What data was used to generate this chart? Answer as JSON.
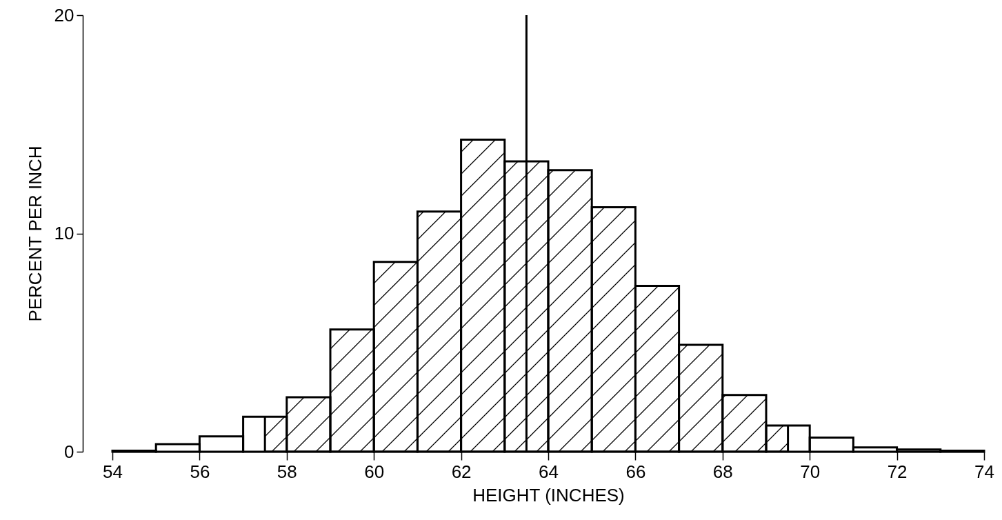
{
  "chart_data": {
    "type": "histogram",
    "xlabel": "HEIGHT (INCHES)",
    "ylabel": "PERCENT PER INCH",
    "bins": [
      54,
      55,
      56,
      57,
      58,
      59,
      60,
      61,
      62,
      63,
      64,
      65,
      66,
      67,
      68,
      69,
      70,
      71,
      72,
      73,
      74
    ],
    "values": [
      0.05,
      0.35,
      0.7,
      1.6,
      2.5,
      5.6,
      8.7,
      11,
      14.3,
      13.3,
      12.9,
      11.2,
      7.6,
      4.9,
      2.6,
      1.2,
      0.65,
      0.2,
      0.1,
      0.05
    ],
    "xlim": [
      54,
      74
    ],
    "ylim": [
      0,
      20
    ],
    "xticks": [
      54,
      56,
      58,
      60,
      62,
      64,
      66,
      68,
      70,
      72,
      74
    ],
    "yticks": [
      0,
      10,
      20
    ],
    "ref_lines": [
      {
        "axis": "x",
        "value": 63.5
      }
    ],
    "bands": [
      {
        "axis": "x",
        "from": 57.5,
        "to": 69.5
      }
    ]
  }
}
